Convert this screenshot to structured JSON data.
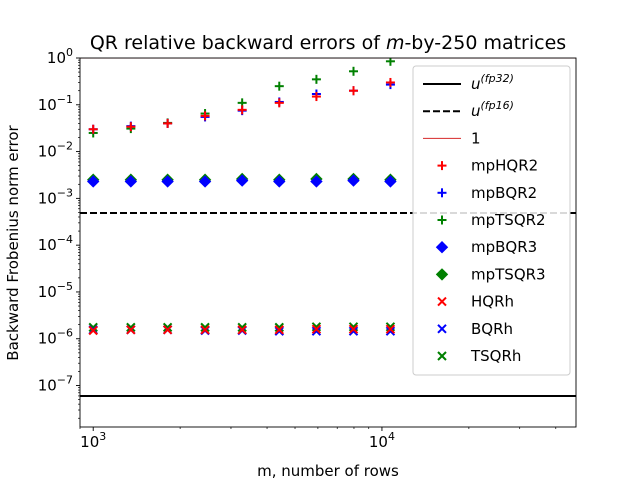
{
  "chart_data": {
    "type": "scatter",
    "title": "QR relative backward errors of m-by-250 matrices",
    "title_parts": {
      "prefix": "QR relative backward errors of ",
      "italic": "m",
      "suffix": "-by-250 matrices"
    },
    "xlabel": "m, number of rows",
    "ylabel": "Backward Frobenius norm error",
    "xscale": "log",
    "yscale": "log",
    "xlim": [
      900,
      47000
    ],
    "ylim": [
      1.3e-08,
      1
    ],
    "x_ticks": [
      {
        "value": 1000,
        "base": "10",
        "exp": "3"
      },
      {
        "value": 10000,
        "base": "10",
        "exp": "4"
      }
    ],
    "y_ticks": [
      {
        "value": 1e-07,
        "base": "10",
        "exp": "−7"
      },
      {
        "value": 1e-06,
        "base": "10",
        "exp": "−6"
      },
      {
        "value": 1e-05,
        "base": "10",
        "exp": "−5"
      },
      {
        "value": 0.0001,
        "base": "10",
        "exp": "−4"
      },
      {
        "value": 0.001,
        "base": "10",
        "exp": "−3"
      },
      {
        "value": 0.01,
        "base": "10",
        "exp": "−2"
      },
      {
        "value": 0.1,
        "base": "10",
        "exp": "−1"
      },
      {
        "value": 1,
        "base": "10",
        "exp": "0"
      }
    ],
    "grid": false,
    "legend_position": "top-right",
    "x": [
      1000,
      1350,
      1810,
      2440,
      3280,
      4410,
      5930,
      7970,
      10700
    ],
    "reference_lines": [
      {
        "name": "u^(fp32)",
        "label_base": "u",
        "label_sup": "(fp32)",
        "value": 5.96e-08,
        "style": "solid",
        "color": "#000000"
      },
      {
        "name": "u^(fp16)",
        "label_base": "u",
        "label_sup": "(fp16)",
        "value": 0.000488,
        "style": "dashed",
        "color": "#000000"
      },
      {
        "name": "1",
        "label_base": "1",
        "label_sup": "",
        "value": 1,
        "style": "solid",
        "color": "#d62728"
      }
    ],
    "series": [
      {
        "name": "mpHQR2",
        "marker": "plus",
        "color": "#ff0000",
        "values": [
          0.03,
          0.034,
          0.04,
          0.058,
          0.078,
          0.11,
          0.15,
          0.2,
          0.3
        ]
      },
      {
        "name": "mpBQR2",
        "marker": "plus",
        "color": "#0000ff",
        "values": [
          0.03,
          0.035,
          0.04,
          0.055,
          0.075,
          0.115,
          0.17,
          0.2,
          0.27
        ]
      },
      {
        "name": "mpTSQR2",
        "marker": "plus",
        "color": "#008000",
        "values": [
          0.025,
          0.031,
          0.041,
          0.065,
          0.11,
          0.25,
          0.35,
          0.52,
          0.85
        ]
      },
      {
        "name": "mpBQR3",
        "marker": "diamond",
        "color": "#0000ff",
        "values": [
          0.0023,
          0.0023,
          0.0023,
          0.0023,
          0.0024,
          0.0023,
          0.0023,
          0.0024,
          0.0023
        ]
      },
      {
        "name": "mpTSQR3",
        "marker": "diamond",
        "color": "#008000",
        "values": [
          0.0025,
          0.0025,
          0.0025,
          0.0025,
          0.0026,
          0.0025,
          0.0026,
          0.0026,
          0.0025
        ]
      },
      {
        "name": "HQRh",
        "marker": "x",
        "color": "#ff0000",
        "values": [
          1.5e-06,
          1.55e-06,
          1.55e-06,
          1.55e-06,
          1.55e-06,
          1.55e-06,
          1.6e-06,
          1.6e-06,
          1.6e-06
        ]
      },
      {
        "name": "BQRh",
        "marker": "x",
        "color": "#0000ff",
        "values": [
          1.55e-06,
          1.55e-06,
          1.55e-06,
          1.5e-06,
          1.5e-06,
          1.45e-06,
          1.45e-06,
          1.45e-06,
          1.45e-06
        ]
      },
      {
        "name": "TSQRh",
        "marker": "x",
        "color": "#008000",
        "values": [
          1.75e-06,
          1.75e-06,
          1.75e-06,
          1.75e-06,
          1.75e-06,
          1.75e-06,
          1.8e-06,
          1.8e-06,
          1.8e-06
        ]
      }
    ]
  }
}
